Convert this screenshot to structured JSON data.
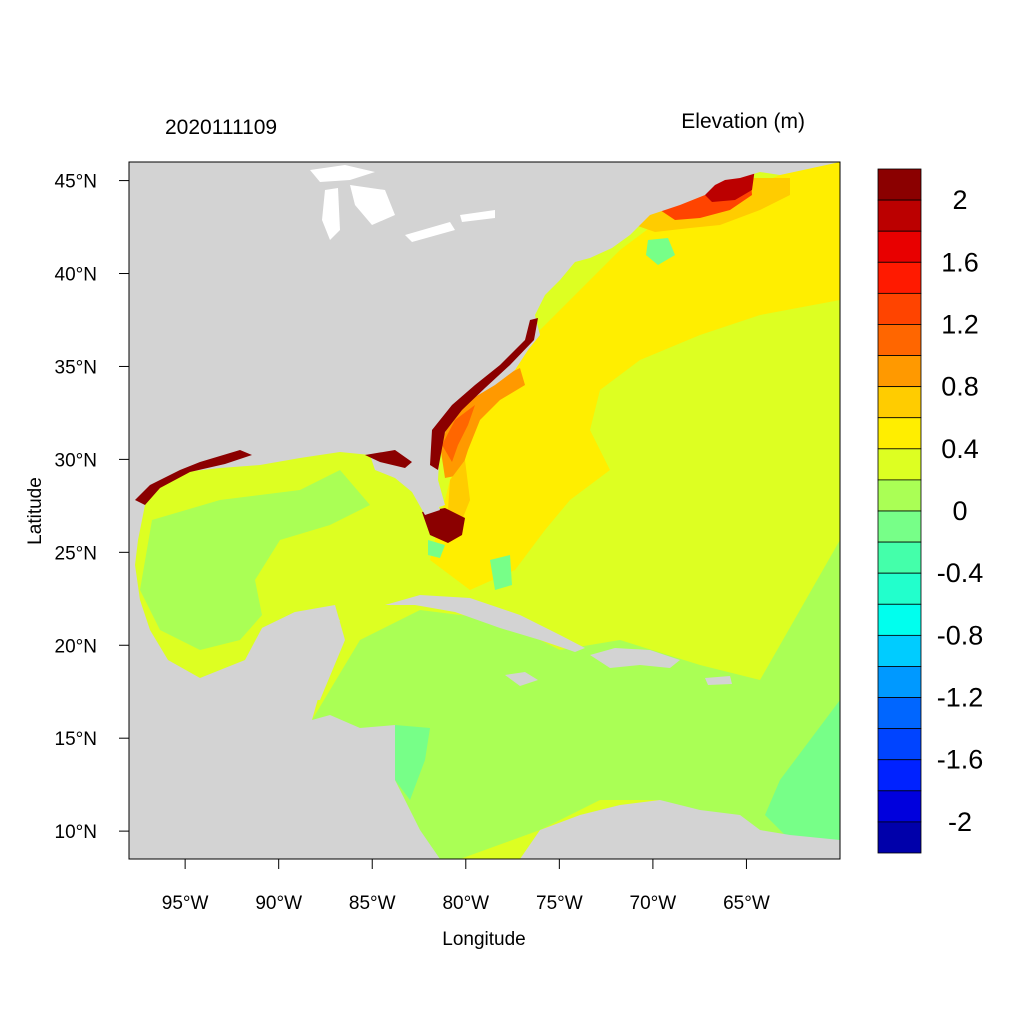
{
  "figure": {
    "left_title": "2020111109",
    "right_title": "Elevation (m)",
    "xlabel": "Longitude",
    "ylabel": "Latitude"
  },
  "map": {
    "lon_range": [
      -98,
      -60
    ],
    "lat_range": [
      8.5,
      46
    ],
    "lon_ticks": [
      {
        "value": -95,
        "label": "95°W"
      },
      {
        "value": -90,
        "label": "90°W"
      },
      {
        "value": -85,
        "label": "85°W"
      },
      {
        "value": -80,
        "label": "80°W"
      },
      {
        "value": -75,
        "label": "75°W"
      },
      {
        "value": -70,
        "label": "70°W"
      },
      {
        "value": -65,
        "label": "65°W"
      }
    ],
    "lat_ticks": [
      {
        "value": 45,
        "label": "45°N"
      },
      {
        "value": 40,
        "label": "40°N"
      },
      {
        "value": 35,
        "label": "35°N"
      },
      {
        "value": 30,
        "label": "30°N"
      },
      {
        "value": 25,
        "label": "25°N"
      },
      {
        "value": 20,
        "label": "20°N"
      },
      {
        "value": 15,
        "label": "15°N"
      },
      {
        "value": 10,
        "label": "10°N"
      }
    ],
    "land_color": "#d3d3d3"
  },
  "colorbar": {
    "levels": [
      2.2,
      2.0,
      1.8,
      1.6,
      1.4,
      1.2,
      1.0,
      0.8,
      0.6,
      0.4,
      0.2,
      0.0,
      -0.2,
      -0.4,
      -0.6,
      -0.8,
      -1.0,
      -1.2,
      -1.4,
      -1.6,
      -1.8,
      -2.0,
      -2.2
    ],
    "colors": [
      "#8b0000",
      "#bb0000",
      "#e80000",
      "#ff1a00",
      "#ff4400",
      "#ff6600",
      "#ff9900",
      "#ffcc00",
      "#ffee00",
      "#ddff22",
      "#aaff55",
      "#77ff88",
      "#44ffaa",
      "#22ffcc",
      "#00ffee",
      "#00ccff",
      "#0099ff",
      "#0066ff",
      "#0044ff",
      "#0022ff",
      "#0000dd",
      "#0000aa"
    ],
    "tick_labels": [
      {
        "value": 2.0,
        "label": "2"
      },
      {
        "value": 1.6,
        "label": "1.6"
      },
      {
        "value": 1.2,
        "label": "1.2"
      },
      {
        "value": 0.8,
        "label": "0.8"
      },
      {
        "value": 0.4,
        "label": "0.4"
      },
      {
        "value": 0.0,
        "label": "0"
      },
      {
        "value": -0.4,
        "label": "-0.4"
      },
      {
        "value": -0.8,
        "label": "-0.8"
      },
      {
        "value": -1.2,
        "label": "-1.2"
      },
      {
        "value": -1.6,
        "label": "-1.6"
      },
      {
        "value": -2.0,
        "label": "-2"
      }
    ]
  }
}
